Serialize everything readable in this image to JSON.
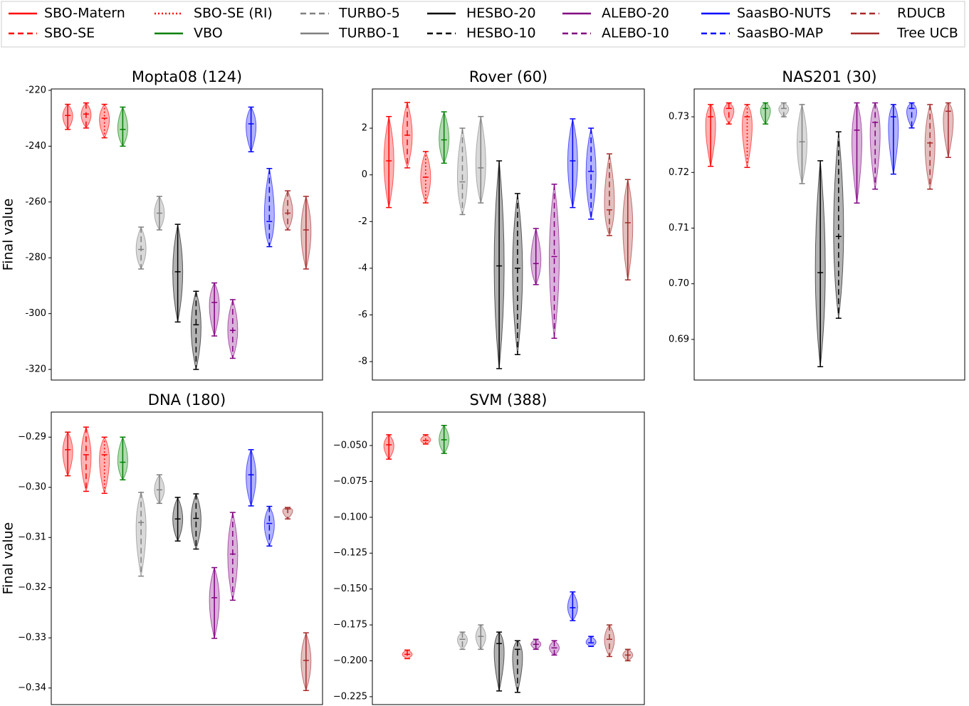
{
  "legend": {
    "items": [
      {
        "name": "SBO-Matern",
        "color": "#ff0000",
        "dash": "solid"
      },
      {
        "name": "SBO-SE",
        "color": "#ff0000",
        "dash": "dashed"
      },
      {
        "name": "SBO-SE (RI)",
        "color": "#ff0000",
        "dash": "dotted"
      },
      {
        "name": "VBO",
        "color": "#008000",
        "dash": "solid"
      },
      {
        "name": "TURBO-5",
        "color": "#808080",
        "dash": "dashed"
      },
      {
        "name": "TURBO-1",
        "color": "#808080",
        "dash": "solid"
      },
      {
        "name": "HESBO-20",
        "color": "#000000",
        "dash": "solid"
      },
      {
        "name": "HESBO-10",
        "color": "#000000",
        "dash": "dashed"
      },
      {
        "name": "ALEBO-20",
        "color": "#800080",
        "dash": "solid"
      },
      {
        "name": "ALEBO-10",
        "color": "#800080",
        "dash": "dashed"
      },
      {
        "name": "SaasBO-NUTS",
        "color": "#0000ff",
        "dash": "solid"
      },
      {
        "name": "SaasBO-MAP",
        "color": "#0000ff",
        "dash": "dashed"
      },
      {
        "name": "RDUCB",
        "color": "#a52a2a",
        "dash": "dashed"
      },
      {
        "name": "Tree UCB",
        "color": "#a52a2a",
        "dash": "solid"
      }
    ]
  },
  "chart_data": [
    {
      "type": "violin",
      "title": "Mopta08 (124)",
      "ylabel": "Final value",
      "ylim": [
        -323.8,
        -219.5
      ],
      "yticks": [
        -220,
        -240,
        -260,
        -280,
        -300,
        -320
      ],
      "max": [
        -225,
        -224.5,
        -225,
        -226,
        -269,
        -258,
        -268,
        -292,
        -289,
        -295,
        -226,
        -248,
        -256,
        -258
      ],
      "median": [
        -229,
        -228.5,
        -230,
        -234,
        -277,
        -264,
        -285,
        -304,
        -296,
        -306,
        -232,
        -267,
        -264,
        -270
      ],
      "min": [
        -234,
        -233.5,
        -237,
        -240,
        -284,
        -270,
        -303,
        -320,
        -308,
        -316,
        -242,
        -276,
        -270,
        -284
      ]
    },
    {
      "type": "violin",
      "title": "Rover (60)",
      "ylim": [
        -8.79,
        3.68
      ],
      "yticks": [
        2,
        0,
        -2,
        -4,
        -6,
        -8
      ],
      "max": [
        2.5,
        3.1,
        1.0,
        2.7,
        2.0,
        2.5,
        0.6,
        -0.8,
        -2.3,
        -0.4,
        2.4,
        2.0,
        0.9,
        -0.2
      ],
      "median": [
        0.6,
        1.7,
        -0.1,
        1.5,
        -0.3,
        0.3,
        -3.9,
        -4.0,
        -3.8,
        -3.5,
        0.6,
        0.15,
        -1.5,
        -2.05
      ],
      "min": [
        -1.4,
        0.3,
        -1.2,
        0.5,
        -1.7,
        -1.2,
        -8.3,
        -7.7,
        -4.7,
        -7.0,
        -1.4,
        -1.9,
        -2.6,
        -4.5
      ]
    },
    {
      "type": "violin",
      "title": "NAS201 (30)",
      "ylim": [
        0.6827,
        0.735
      ],
      "yticks": [
        {
          "value": 0.73,
          "label": "0.73"
        },
        {
          "value": 0.72,
          "label": "0.72"
        },
        {
          "value": 0.71,
          "label": "0.71"
        },
        {
          "value": 0.7,
          "label": "0.70"
        },
        {
          "value": 0.69,
          "label": "0.69"
        }
      ],
      "max": [
        0.7322,
        0.7325,
        0.7322,
        0.7325,
        0.7325,
        0.7322,
        0.7221,
        0.7273,
        0.7325,
        0.7325,
        0.7322,
        0.7325,
        0.7322,
        0.7325
      ],
      "median": [
        0.73,
        0.7315,
        0.73,
        0.7315,
        0.7315,
        0.7255,
        0.702,
        0.7085,
        0.7276,
        0.729,
        0.73,
        0.7315,
        0.7253,
        0.731
      ],
      "min": [
        0.7211,
        0.7287,
        0.7209,
        0.7287,
        0.73,
        0.718,
        0.6851,
        0.6938,
        0.7145,
        0.717,
        0.7197,
        0.728,
        0.717,
        0.7227
      ]
    },
    {
      "type": "violin",
      "title": "DNA (180)",
      "ylabel": "Final value",
      "ylim": [
        -0.3433,
        -0.285
      ],
      "yticks": [
        {
          "value": -0.29,
          "label": "−0.29"
        },
        {
          "value": -0.3,
          "label": "−0.30"
        },
        {
          "value": -0.31,
          "label": "−0.31"
        },
        {
          "value": -0.32,
          "label": "−0.32"
        },
        {
          "value": -0.33,
          "label": "−0.33"
        },
        {
          "value": -0.34,
          "label": "−0.34"
        }
      ],
      "max": [
        -0.289,
        -0.288,
        -0.29,
        -0.29,
        -0.301,
        -0.2975,
        -0.302,
        -0.3013,
        -0.316,
        -0.305,
        -0.2925,
        -0.3038,
        -0.304,
        -0.329
      ],
      "median": [
        -0.2925,
        -0.2935,
        -0.2935,
        -0.295,
        -0.307,
        -0.3005,
        -0.3063,
        -0.3062,
        -0.322,
        -0.3133,
        -0.2975,
        -0.3072,
        -0.3043,
        -0.3345
      ],
      "min": [
        -0.2977,
        -0.3008,
        -0.3012,
        -0.2985,
        -0.3177,
        -0.3032,
        -0.3107,
        -0.3123,
        -0.3301,
        -0.3225,
        -0.3037,
        -0.3117,
        -0.3063,
        -0.3405
      ]
    },
    {
      "type": "violin",
      "title": "SVM (388)",
      "ylim": [
        -0.2305,
        -0.0267
      ],
      "yticks": [
        {
          "value": -0.05,
          "label": "−0.050"
        },
        {
          "value": -0.075,
          "label": "−0.075"
        },
        {
          "value": -0.1,
          "label": "−0.100"
        },
        {
          "value": -0.125,
          "label": "−0.125"
        },
        {
          "value": -0.15,
          "label": "−0.150"
        },
        {
          "value": -0.175,
          "label": "−0.175"
        },
        {
          "value": -0.2,
          "label": "−0.200"
        },
        {
          "value": -0.225,
          "label": "−0.225"
        }
      ],
      "max": [
        -0.0425,
        -0.1925,
        -0.0425,
        -0.036,
        -0.18,
        -0.175,
        -0.18,
        -0.186,
        -0.185,
        -0.186,
        -0.152,
        -0.183,
        -0.175,
        -0.192
      ],
      "median": [
        -0.0495,
        -0.1955,
        -0.0465,
        -0.046,
        -0.185,
        -0.183,
        -0.188,
        -0.192,
        -0.1885,
        -0.191,
        -0.163,
        -0.1875,
        -0.185,
        -0.196
      ],
      "min": [
        -0.0595,
        -0.1985,
        -0.049,
        -0.0555,
        -0.192,
        -0.192,
        -0.221,
        -0.222,
        -0.192,
        -0.196,
        -0.172,
        -0.19,
        -0.197,
        -0.2
      ]
    }
  ]
}
